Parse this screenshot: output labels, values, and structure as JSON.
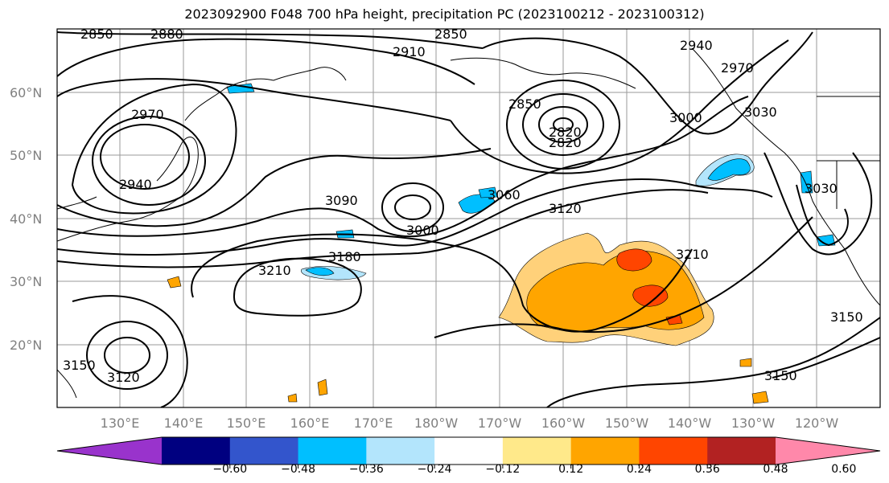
{
  "title": "2023092900 F048 700 hPa height, precipitation PC (2023100212 - 2023100312)",
  "lat_labels": [
    "60°N",
    "50°N",
    "40°N",
    "30°N",
    "20°N"
  ],
  "lon_labels": [
    "130°E",
    "140°E",
    "150°E",
    "160°E",
    "170°E",
    "180°W",
    "170°W",
    "160°W",
    "150°W",
    "140°W",
    "130°W",
    "120°W"
  ],
  "contour_labels": [
    "2850",
    "2880",
    "2850",
    "2910",
    "2940",
    "2970",
    "2970",
    "2940",
    "2850",
    "2820",
    "2820",
    "3000",
    "3030",
    "3030",
    "3090",
    "3000",
    "3060",
    "3120",
    "3210",
    "3180",
    "3210",
    "3120",
    "3150",
    "3150",
    "3150"
  ],
  "colorbar": {
    "ticks": [
      "−0.60",
      "−0.48",
      "−0.36",
      "−0.24",
      "−0.12",
      "0.12",
      "0.24",
      "0.36",
      "0.48",
      "0.60"
    ],
    "colors": [
      "#9933cc",
      "#000080",
      "#3355cc",
      "#00bfff",
      "#b3e5fc",
      "#ffffff",
      "#ffe98a",
      "#ffa500",
      "#ff4500",
      "#b22222",
      "#ff88aa"
    ]
  }
}
